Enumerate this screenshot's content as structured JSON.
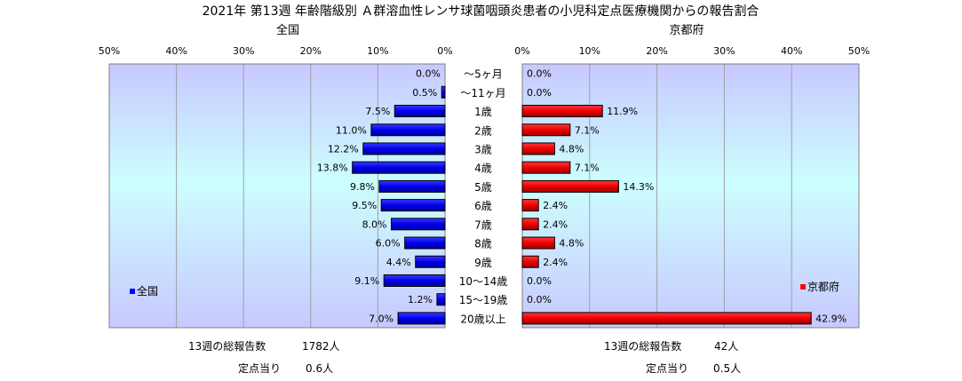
{
  "title": "2021年 第13週 年齢階級別 Ａ群溶血性レンサ球菌咽頭炎患者の小児科定点医療機関からの報告割合",
  "chart_data": [
    {
      "type": "bar",
      "orientation": "horizontal",
      "direction": "right-to-left",
      "title": "全国",
      "legend": "全国",
      "legend_position": "bottom-left",
      "color": "#0000ff",
      "xlim": [
        0,
        50
      ],
      "x_ticks": [
        "50%",
        "40%",
        "30%",
        "20%",
        "10%",
        "0%"
      ],
      "categories": [
        "～5ヶ月",
        "～11ヶ月",
        "1歳",
        "2歳",
        "3歳",
        "4歳",
        "5歳",
        "6歳",
        "7歳",
        "8歳",
        "9歳",
        "10～14歳",
        "15～19歳",
        "20歳以上"
      ],
      "values": [
        0.0,
        0.5,
        7.5,
        11.0,
        12.2,
        13.8,
        9.8,
        9.5,
        8.0,
        6.0,
        4.4,
        9.1,
        1.2,
        7.0
      ],
      "labels": [
        "0.0%",
        "0.5%",
        "7.5%",
        "11.0%",
        "12.2%",
        "13.8%",
        "9.8%",
        "9.5%",
        "8.0%",
        "6.0%",
        "4.4%",
        "9.1%",
        "1.2%",
        "7.0%"
      ],
      "grid": true
    },
    {
      "type": "bar",
      "orientation": "horizontal",
      "direction": "left-to-right",
      "title": "京都府",
      "legend": "京都府",
      "legend_position": "bottom-right",
      "color": "#ff0000",
      "xlim": [
        0,
        50
      ],
      "x_ticks": [
        "0%",
        "10%",
        "20%",
        "30%",
        "40%",
        "50%"
      ],
      "categories": [
        "～5ヶ月",
        "～11ヶ月",
        "1歳",
        "2歳",
        "3歳",
        "4歳",
        "5歳",
        "6歳",
        "7歳",
        "8歳",
        "9歳",
        "10～14歳",
        "15～19歳",
        "20歳以上"
      ],
      "values": [
        0.0,
        0.0,
        11.9,
        7.1,
        4.8,
        7.1,
        14.3,
        2.4,
        2.4,
        4.8,
        2.4,
        0.0,
        0.0,
        42.9
      ],
      "labels": [
        "0.0%",
        "0.0%",
        "11.9%",
        "7.1%",
        "4.8%",
        "7.1%",
        "14.3%",
        "2.4%",
        "2.4%",
        "4.8%",
        "2.4%",
        "0.0%",
        "0.0%",
        "42.9%"
      ],
      "grid": true
    }
  ],
  "footer": {
    "national": {
      "total_label": "13週の総報告数",
      "total_value": "1782人",
      "per_label": "定点当り",
      "per_value": "0.6人"
    },
    "kyoto": {
      "total_label": "13週の総報告数",
      "total_value": "42人",
      "per_label": "定点当り",
      "per_value": "0.5人"
    }
  }
}
